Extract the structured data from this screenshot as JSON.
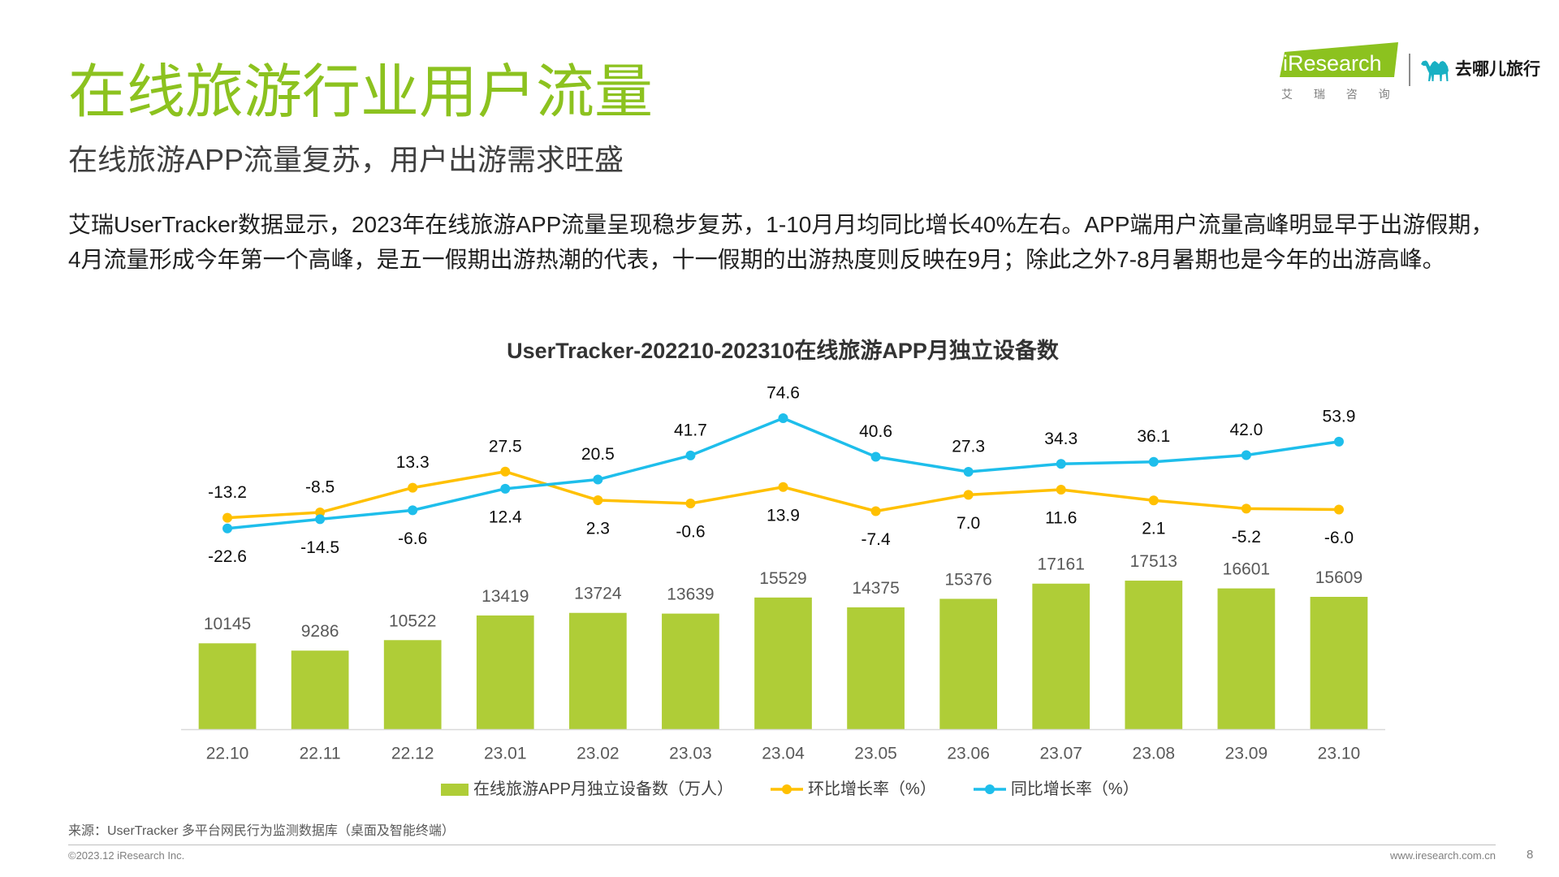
{
  "header": {
    "title": "在线旅游行业用户流量",
    "subtitle": "在线旅游APP流量复苏，用户出游需求旺盛"
  },
  "logos": {
    "iresearch": {
      "wordmark": "iResearch",
      "tagline": "艾 瑞 咨 询",
      "color": "#8CC21F"
    },
    "qunar": {
      "icon": "camel-icon",
      "name": "去哪儿旅行",
      "color": "#19B0C3"
    }
  },
  "summary": {
    "lines": [
      "艾瑞UserTracker数据显示，2023年在线旅游APP流量呈现稳步复苏，1-10月月均同比增长40%左右。APP端用户流量高峰明显早于出游假期，",
      "4月流量形成今年第一个高峰，是五一假期出游热潮的代表，十一假期的出游热度则反映在9月；除此之外7-8月暑期也是今年的出游高峰。"
    ]
  },
  "chart_data": {
    "type": "bar",
    "title": "UserTracker-202210-202310在线旅游APP月独立设备数",
    "categories": [
      "22.10",
      "22.11",
      "22.12",
      "23.01",
      "23.02",
      "23.03",
      "23.04",
      "23.05",
      "23.06",
      "23.07",
      "23.08",
      "23.09",
      "23.10"
    ],
    "series": [
      {
        "name": "在线旅游APP月独立设备数（万人）",
        "type": "bar",
        "axis": "primary",
        "color": "#AFCD37",
        "values": [
          10145,
          9286,
          10522,
          13419,
          13724,
          13639,
          15529,
          14375,
          15376,
          17161,
          17513,
          16601,
          15609
        ]
      },
      {
        "name": "环比增长率（%）",
        "type": "line",
        "axis": "secondary",
        "color": "#FFC000",
        "values": [
          -13.2,
          -8.5,
          13.3,
          27.5,
          2.3,
          -0.6,
          13.9,
          -7.4,
          7.0,
          11.6,
          2.1,
          -5.2,
          -6.0
        ]
      },
      {
        "name": "同比增长率（%）",
        "type": "line",
        "axis": "secondary",
        "color": "#1EBEEB",
        "values": [
          -22.6,
          -14.5,
          -6.6,
          12.4,
          20.5,
          41.7,
          74.6,
          40.6,
          27.3,
          34.3,
          36.1,
          42.0,
          53.9
        ]
      }
    ],
    "ylim": [
      0,
      40000
    ],
    "y2lim": [
      -200,
      100
    ],
    "data_labels": true,
    "y_axes_visible": false,
    "grid": false,
    "legend": "bottom"
  },
  "source_note": "来源：UserTracker 多平台网民行为监测数据库（桌面及智能终端）",
  "footer": {
    "copyright": "©2023.12 iResearch Inc.",
    "url": "www.iresearch.com.cn",
    "page_number": "8"
  },
  "colors": {
    "title_green": "#8CC21F",
    "body_text": "#1F1F1F",
    "muted_text": "#7F7F7F"
  }
}
